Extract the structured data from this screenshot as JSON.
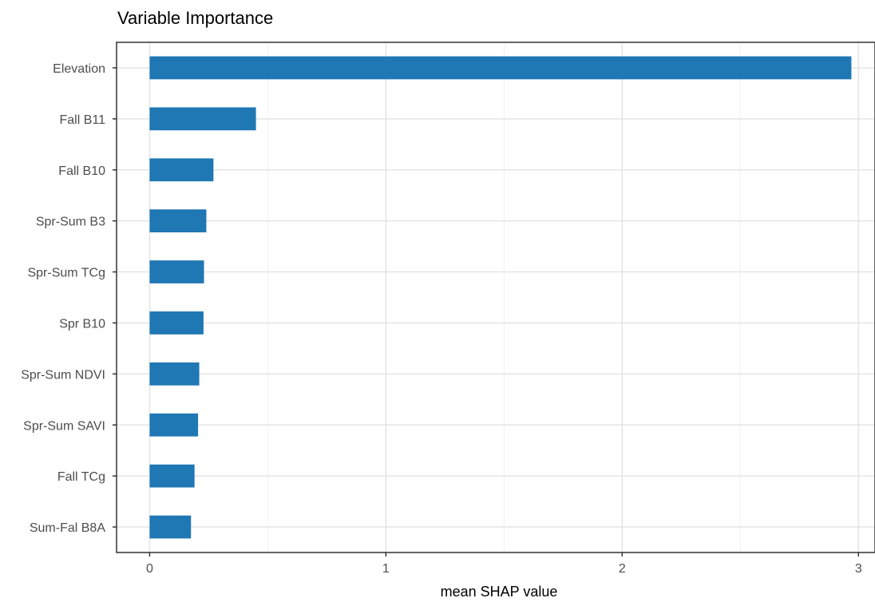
{
  "chart_data": {
    "type": "bar",
    "orientation": "horizontal",
    "title": "Variable Importance",
    "xlabel": "mean SHAP value",
    "ylabel": "",
    "categories": [
      "Elevation",
      "Fall B11",
      "Fall B10",
      "Spr-Sum B3",
      "Spr-Sum TCg",
      "Spr B10",
      "Spr-Sum NDVI",
      "Spr-Sum SAVI",
      "Fall TCg",
      "Sum-Fal B8A"
    ],
    "values": [
      2.97,
      0.45,
      0.27,
      0.24,
      0.23,
      0.228,
      0.21,
      0.205,
      0.19,
      0.175
    ],
    "xlim": [
      -0.14,
      3.07
    ],
    "xticks": [
      0,
      1,
      2,
      3
    ],
    "grid": true,
    "bar_color": "#1f77b4"
  }
}
